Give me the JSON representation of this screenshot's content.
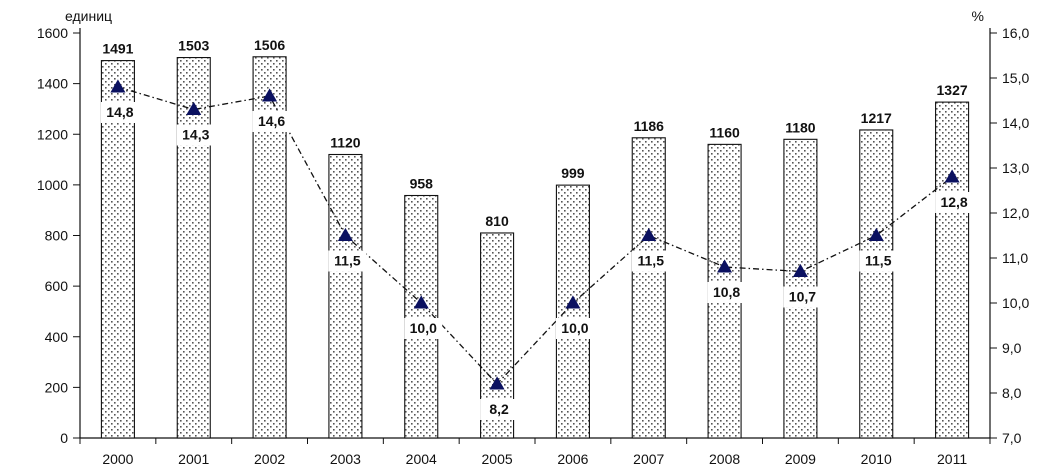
{
  "chart_data": {
    "type": "bar",
    "categories": [
      "2000",
      "2001",
      "2002",
      "2003",
      "2004",
      "2005",
      "2006",
      "2007",
      "2008",
      "2009",
      "2010",
      "2011"
    ],
    "series": [
      {
        "type": "bar",
        "axis": "left",
        "values": [
          1491,
          1503,
          1506,
          1120,
          958,
          810,
          999,
          1186,
          1160,
          1180,
          1217,
          1327
        ],
        "labels": [
          "1491",
          "1503",
          "1506",
          "1120",
          "958",
          "810",
          "999",
          "1186",
          "1160",
          "1180",
          "1217",
          "1327"
        ]
      },
      {
        "type": "line",
        "axis": "right",
        "values": [
          14.8,
          14.3,
          14.6,
          11.5,
          10.0,
          8.2,
          10.0,
          11.5,
          10.8,
          10.7,
          11.5,
          12.8
        ],
        "labels": [
          "14,8",
          "14,3",
          "14,6",
          "11,5",
          "10,0",
          "8,2",
          "10,0",
          "11,5",
          "10,8",
          "10,7",
          "11,5",
          "12,8"
        ]
      }
    ],
    "left_axis": {
      "unit": "единиц",
      "ylim": [
        0,
        1600
      ],
      "ticks": [
        0,
        200,
        400,
        600,
        800,
        1000,
        1200,
        1400,
        1600
      ],
      "tick_labels": [
        "0",
        "200",
        "400",
        "600",
        "800",
        "1000",
        "1200",
        "1400",
        "1600"
      ]
    },
    "right_axis": {
      "unit": "%",
      "ylim": [
        7.0,
        16.0
      ],
      "ticks": [
        7,
        8,
        9,
        10,
        11,
        12,
        13,
        14,
        15,
        16
      ],
      "tick_labels": [
        "7,0",
        "8,0",
        "9,0",
        "10,0",
        "11,0",
        "12,0",
        "13,0",
        "14,0",
        "15,0",
        "16,0"
      ]
    },
    "grid": false,
    "legend": "none",
    "colors": {
      "bars": "#ffffff",
      "bar_outline": "#111111",
      "line": "#111111",
      "marker": "#0b1160"
    }
  }
}
